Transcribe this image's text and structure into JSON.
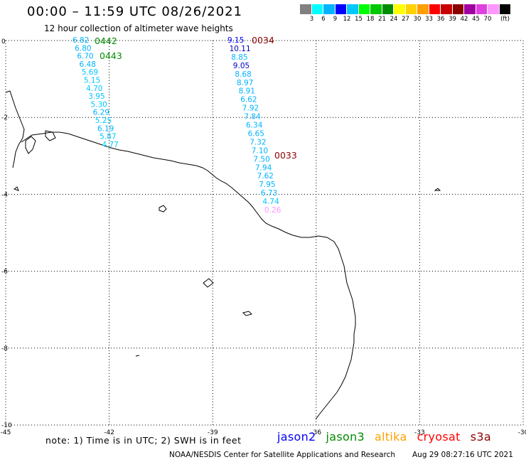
{
  "header": {
    "title": "00:00 – 11:59 UTC 08/26/2021",
    "subtitle": "12 hour collection of altimeter wave heights"
  },
  "colorbar": {
    "swatches": [
      "#808080",
      "#00ffff",
      "#00b4ff",
      "#0000ff",
      "#00c8ff",
      "#00ff00",
      "#00c800",
      "#008c00",
      "#ffff00",
      "#ffd200",
      "#ffa000",
      "#ff0000",
      "#c80000",
      "#8c0000",
      "#a000a0",
      "#e040e0",
      "#ff96ff",
      "#000000"
    ],
    "tick_labels": [
      "3",
      "6",
      "9",
      "12",
      "15",
      "18",
      "21",
      "24",
      "27",
      "30",
      "33",
      "36",
      "39",
      "42",
      "45",
      "70",
      "(ft)"
    ]
  },
  "axes": {
    "x_ticks": [
      -45,
      -42,
      -39,
      -36,
      -33,
      -30
    ],
    "x_tick_labels": [
      "-45",
      "-42",
      "-39",
      "-36",
      "-33",
      "-30"
    ],
    "y_ticks": [
      0,
      -2,
      -4,
      -6,
      -8,
      -10
    ],
    "y_tick_labels": [
      "0",
      "-2",
      "-4",
      "-6",
      "-8",
      "-10"
    ],
    "xlim": [
      -45,
      -30
    ],
    "ylim": [
      -10,
      0
    ]
  },
  "passes": [
    {
      "label": "0442",
      "color": "#008c00"
    },
    {
      "label": "0443",
      "color": "#008c00"
    },
    {
      "label": "0034",
      "color": "#8c0000"
    },
    {
      "label": "0033",
      "color": "#8c0000"
    }
  ],
  "tracks": [
    {
      "name": "west-track",
      "values": [
        {
          "v": "6.82",
          "c": "#00b4ff"
        },
        {
          "v": "6.80",
          "c": "#00b4ff"
        },
        {
          "v": "6.70",
          "c": "#00b4ff"
        },
        {
          "v": "6.48",
          "c": "#00b4ff"
        },
        {
          "v": "5.69",
          "c": "#00c8ff"
        },
        {
          "v": "5.15",
          "c": "#00c8ff"
        },
        {
          "v": "4.70",
          "c": "#00c8ff"
        },
        {
          "v": "3.95",
          "c": "#00c8ff"
        },
        {
          "v": "5.30",
          "c": "#00c8ff"
        },
        {
          "v": "6.29",
          "c": "#00b4ff"
        },
        {
          "v": "5.25",
          "c": "#00c8ff"
        },
        {
          "v": "6.19",
          "c": "#00b4ff"
        },
        {
          "v": "5.87",
          "c": "#00c8ff"
        },
        {
          "v": "4.77",
          "c": "#00c8ff"
        }
      ]
    },
    {
      "name": "east-track",
      "values": [
        {
          "v": "9.15",
          "c": "#0000ff"
        },
        {
          "v": "10.11",
          "c": "#0000b4"
        },
        {
          "v": "8.85",
          "c": "#00b4ff"
        },
        {
          "v": "9.05",
          "c": "#0000c8"
        },
        {
          "v": "8.68",
          "c": "#00b4ff"
        },
        {
          "v": "8.97",
          "c": "#00b4ff"
        },
        {
          "v": "8.91",
          "c": "#00b4ff"
        },
        {
          "v": "6.62",
          "c": "#00b4ff"
        },
        {
          "v": "7.92",
          "c": "#00b4ff"
        },
        {
          "v": "7.84",
          "c": "#00b4ff"
        },
        {
          "v": "6.34",
          "c": "#00b4ff"
        },
        {
          "v": "6.65",
          "c": "#00b4ff"
        },
        {
          "v": "7.32",
          "c": "#00b4ff"
        },
        {
          "v": "7.10",
          "c": "#00b4ff"
        },
        {
          "v": "7.50",
          "c": "#00b4ff"
        },
        {
          "v": "7.94",
          "c": "#00b4ff"
        },
        {
          "v": "7.62",
          "c": "#00b4ff"
        },
        {
          "v": "7.95",
          "c": "#00b4ff"
        },
        {
          "v": "6.73",
          "c": "#00b4ff"
        },
        {
          "v": "4.74",
          "c": "#00c8ff"
        },
        {
          "v": "0.26",
          "c": "#ff96ff"
        }
      ]
    }
  ],
  "footer": {
    "note": "note: 1) Time is in UTC; 2) SWH is in feet",
    "satellites": [
      {
        "name": "jason2",
        "color": "#0000ff"
      },
      {
        "name": "jason3",
        "color": "#008c00"
      },
      {
        "name": "altika",
        "color": "#ffa000"
      },
      {
        "name": "cryosat",
        "color": "#ff0000"
      },
      {
        "name": "s3a",
        "color": "#8c0000"
      }
    ],
    "credit": "NOAA/NESDIS Center for Satellite Applications and Research",
    "timestamp": "Aug 29 08:27:16 UTC 2021"
  }
}
